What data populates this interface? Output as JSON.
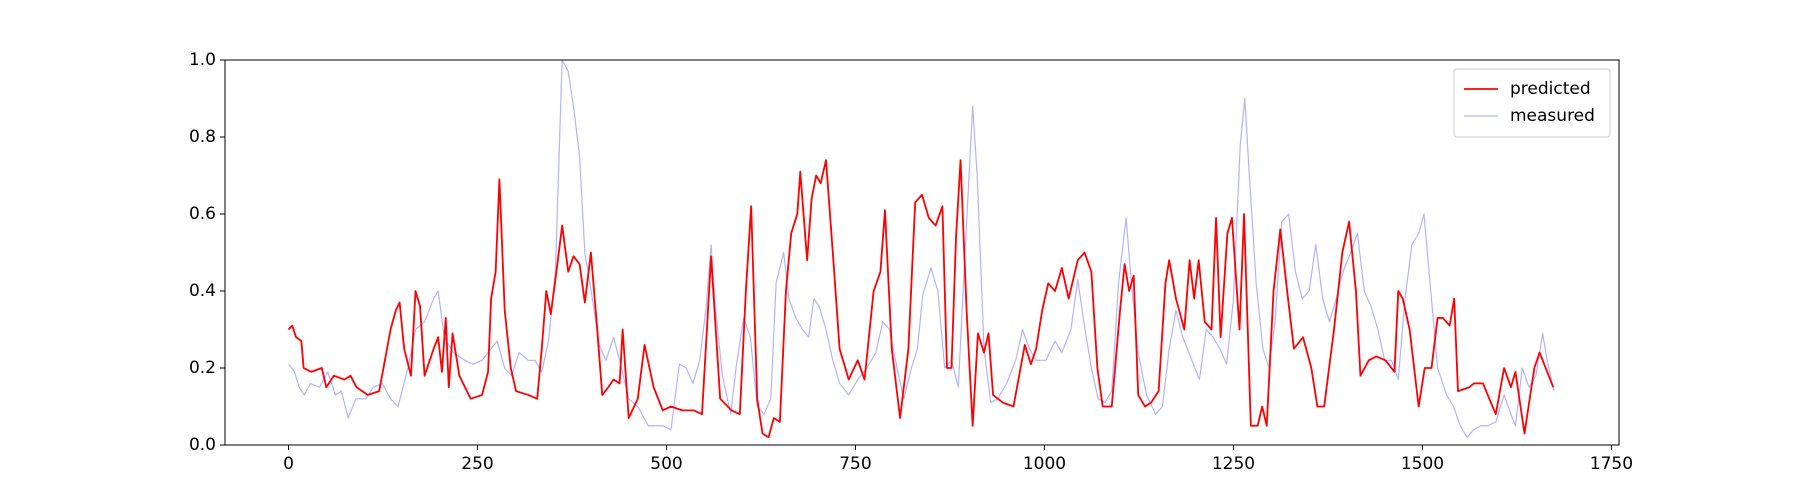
{
  "chart_data": {
    "type": "line",
    "xlim": [
      -84,
      1760
    ],
    "ylim": [
      0,
      1
    ],
    "xticks": [
      0,
      250,
      500,
      750,
      1000,
      1250,
      1500,
      1750
    ],
    "yticks": [
      {
        "value": 0,
        "label": "0.0"
      },
      0.2,
      0.4,
      0.6,
      0.8,
      {
        "value": 1,
        "label": "1.0"
      }
    ],
    "legend": "upper right",
    "series": [
      {
        "name": "predicted",
        "color": "#ff0000",
        "width": 1.8,
        "x": [
          0,
          5,
          10,
          17,
          20,
          30,
          44,
          50,
          60,
          74,
          82,
          90,
          105,
          120,
          135,
          142,
          147,
          153,
          162,
          168,
          174,
          180,
          192,
          198,
          203,
          208,
          212,
          217,
          226,
          241,
          256,
          264,
          268,
          274,
          279,
          286,
          294,
          301,
          317,
          329,
          335,
          341,
          347,
          355,
          362,
          370,
          377,
          385,
          392,
          400,
          408,
          415,
          423,
          430,
          438,
          442,
          450,
          462,
          471,
          483,
          495,
          506,
          521,
          536,
          547,
          559,
          571,
          586,
          597,
          605,
          612,
          620,
          627,
          635,
          642,
          650,
          658,
          665,
          673,
          677,
          686,
          692,
          698,
          704,
          711,
          720,
          729,
          741,
          753,
          762,
          774,
          783,
          789,
          798,
          809,
          820,
          829,
          838,
          847,
          856,
          865,
          871,
          877,
          883,
          889,
          897,
          905,
          912,
          920,
          926,
          932,
          945,
          959,
          974,
          982,
          989,
          997,
          1005,
          1014,
          1023,
          1032,
          1044,
          1053,
          1062,
          1070,
          1077,
          1089,
          1100,
          1106,
          1112,
          1118,
          1124,
          1133,
          1141,
          1151,
          1160,
          1165,
          1174,
          1185,
          1192,
          1198,
          1204,
          1212,
          1221,
          1227,
          1233,
          1242,
          1248,
          1258,
          1264,
          1273,
          1282,
          1288,
          1294,
          1303,
          1312,
          1321,
          1330,
          1342,
          1353,
          1361,
          1370,
          1383,
          1394,
          1403,
          1412,
          1418,
          1429,
          1439,
          1451,
          1463,
          1468,
          1474,
          1483,
          1489,
          1495,
          1503,
          1512,
          1520,
          1527,
          1536,
          1542,
          1547,
          1562,
          1568,
          1580,
          1597,
          1608,
          1617,
          1623,
          1635,
          1648,
          1655,
          1673
        ],
        "values": [
          0.3,
          0.31,
          0.28,
          0.27,
          0.2,
          0.19,
          0.2,
          0.15,
          0.18,
          0.17,
          0.18,
          0.15,
          0.13,
          0.14,
          0.3,
          0.35,
          0.37,
          0.25,
          0.18,
          0.4,
          0.36,
          0.18,
          0.25,
          0.28,
          0.19,
          0.33,
          0.15,
          0.29,
          0.18,
          0.12,
          0.13,
          0.19,
          0.38,
          0.45,
          0.69,
          0.35,
          0.2,
          0.14,
          0.13,
          0.12,
          0.25,
          0.4,
          0.34,
          0.46,
          0.57,
          0.45,
          0.49,
          0.47,
          0.37,
          0.5,
          0.31,
          0.13,
          0.15,
          0.17,
          0.16,
          0.3,
          0.07,
          0.12,
          0.26,
          0.15,
          0.09,
          0.1,
          0.09,
          0.09,
          0.08,
          0.49,
          0.12,
          0.09,
          0.08,
          0.4,
          0.62,
          0.12,
          0.03,
          0.02,
          0.07,
          0.06,
          0.4,
          0.55,
          0.6,
          0.71,
          0.48,
          0.64,
          0.7,
          0.68,
          0.74,
          0.5,
          0.25,
          0.17,
          0.22,
          0.17,
          0.4,
          0.45,
          0.61,
          0.25,
          0.07,
          0.25,
          0.63,
          0.65,
          0.59,
          0.57,
          0.62,
          0.2,
          0.2,
          0.54,
          0.74,
          0.35,
          0.05,
          0.29,
          0.24,
          0.29,
          0.13,
          0.11,
          0.1,
          0.26,
          0.21,
          0.25,
          0.35,
          0.42,
          0.4,
          0.46,
          0.38,
          0.48,
          0.5,
          0.45,
          0.2,
          0.1,
          0.1,
          0.35,
          0.47,
          0.4,
          0.44,
          0.13,
          0.1,
          0.11,
          0.14,
          0.42,
          0.48,
          0.38,
          0.3,
          0.48,
          0.38,
          0.48,
          0.32,
          0.3,
          0.59,
          0.28,
          0.55,
          0.59,
          0.3,
          0.6,
          0.05,
          0.05,
          0.1,
          0.05,
          0.4,
          0.56,
          0.4,
          0.25,
          0.28,
          0.2,
          0.1,
          0.1,
          0.3,
          0.5,
          0.58,
          0.4,
          0.18,
          0.22,
          0.23,
          0.22,
          0.19,
          0.4,
          0.38,
          0.3,
          0.2,
          0.1,
          0.2,
          0.2,
          0.33,
          0.33,
          0.31,
          0.38,
          0.14,
          0.15,
          0.16,
          0.16,
          0.08,
          0.2,
          0.15,
          0.19,
          0.03,
          0.2,
          0.24,
          0.15
        ]
      },
      {
        "name": "measured",
        "color": "#b3b3ff",
        "width": 1.2,
        "x": [
          0,
          8,
          14,
          21,
          29,
          41,
          52,
          62,
          70,
          79,
          89,
          102,
          112,
          124,
          135,
          145,
          158,
          168,
          180,
          192,
          198,
          206,
          218,
          233,
          244,
          256,
          268,
          276,
          286,
          295,
          305,
          317,
          326,
          335,
          344,
          353,
          362,
          370,
          377,
          385,
          392,
          402,
          411,
          420,
          430,
          438,
          450,
          462,
          476,
          486,
          495,
          506,
          517,
          526,
          535,
          544,
          552,
          559,
          565,
          574,
          585,
          592,
          602,
          611,
          620,
          629,
          638,
          645,
          655,
          662,
          671,
          680,
          688,
          695,
          702,
          711,
          720,
          729,
          741,
          753,
          765,
          777,
          786,
          795,
          805,
          814,
          824,
          832,
          839,
          850,
          859,
          868,
          877,
          886,
          895,
          905,
          911,
          920,
          929,
          938,
          950,
          962,
          971,
          980,
          989,
          1002,
          1014,
          1023,
          1035,
          1044,
          1052,
          1062,
          1071,
          1080,
          1089,
          1098,
          1108,
          1115,
          1124,
          1135,
          1147,
          1156,
          1165,
          1174,
          1183,
          1195,
          1205,
          1214,
          1223,
          1232,
          1241,
          1250,
          1259,
          1265,
          1271,
          1280,
          1289,
          1297,
          1305,
          1314,
          1323,
          1332,
          1341,
          1350,
          1359,
          1368,
          1377,
          1386,
          1395,
          1405,
          1414,
          1423,
          1432,
          1441,
          1450,
          1459,
          1468,
          1477,
          1486,
          1495,
          1502,
          1511,
          1520,
          1532,
          1541,
          1550,
          1559,
          1568,
          1577,
          1586,
          1597,
          1608,
          1617,
          1623,
          1632,
          1641,
          1650,
          1659,
          1665,
          1674
        ],
        "values": [
          0.21,
          0.19,
          0.15,
          0.13,
          0.16,
          0.15,
          0.19,
          0.13,
          0.14,
          0.07,
          0.12,
          0.12,
          0.15,
          0.16,
          0.12,
          0.1,
          0.2,
          0.3,
          0.32,
          0.38,
          0.4,
          0.28,
          0.24,
          0.22,
          0.21,
          0.22,
          0.25,
          0.27,
          0.2,
          0.18,
          0.24,
          0.22,
          0.22,
          0.19,
          0.27,
          0.45,
          1.0,
          0.97,
          0.88,
          0.75,
          0.5,
          0.38,
          0.26,
          0.22,
          0.28,
          0.22,
          0.12,
          0.1,
          0.05,
          0.05,
          0.05,
          0.04,
          0.21,
          0.2,
          0.16,
          0.22,
          0.35,
          0.52,
          0.35,
          0.18,
          0.08,
          0.2,
          0.33,
          0.28,
          0.1,
          0.08,
          0.12,
          0.42,
          0.5,
          0.38,
          0.33,
          0.3,
          0.28,
          0.38,
          0.36,
          0.3,
          0.22,
          0.16,
          0.13,
          0.17,
          0.2,
          0.24,
          0.32,
          0.3,
          0.2,
          0.12,
          0.2,
          0.25,
          0.39,
          0.46,
          0.4,
          0.2,
          0.22,
          0.15,
          0.5,
          0.88,
          0.7,
          0.25,
          0.11,
          0.12,
          0.16,
          0.22,
          0.3,
          0.25,
          0.22,
          0.22,
          0.27,
          0.24,
          0.3,
          0.43,
          0.32,
          0.2,
          0.12,
          0.11,
          0.14,
          0.42,
          0.59,
          0.42,
          0.24,
          0.13,
          0.08,
          0.1,
          0.25,
          0.35,
          0.28,
          0.22,
          0.17,
          0.3,
          0.28,
          0.25,
          0.21,
          0.38,
          0.78,
          0.9,
          0.7,
          0.42,
          0.25,
          0.2,
          0.32,
          0.58,
          0.6,
          0.45,
          0.38,
          0.4,
          0.52,
          0.38,
          0.32,
          0.38,
          0.45,
          0.5,
          0.55,
          0.4,
          0.36,
          0.3,
          0.22,
          0.22,
          0.17,
          0.38,
          0.52,
          0.55,
          0.6,
          0.4,
          0.2,
          0.13,
          0.1,
          0.05,
          0.02,
          0.04,
          0.05,
          0.05,
          0.06,
          0.13,
          0.08,
          0.05,
          0.2,
          0.15,
          0.18,
          0.29,
          0.22,
          0.14
        ]
      }
    ]
  }
}
